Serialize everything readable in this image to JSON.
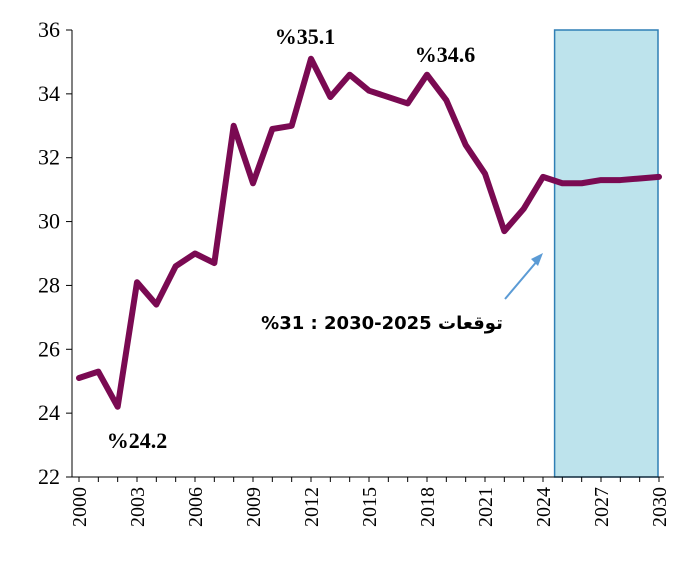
{
  "chart_data": {
    "type": "line",
    "title": "",
    "xlabel": "",
    "ylabel": "",
    "ylim": [
      22,
      36
    ],
    "xlim": [
      2000,
      2030
    ],
    "yticks": [
      22,
      24,
      26,
      28,
      30,
      32,
      34,
      36
    ],
    "xticks": [
      2000,
      2003,
      2006,
      2009,
      2012,
      2015,
      2018,
      2021,
      2024,
      2027,
      2030
    ],
    "grid": false,
    "legend": "none",
    "series": [
      {
        "color": "#7a0a52",
        "x": [
          2000,
          2001,
          2002,
          2003,
          2004,
          2005,
          2006,
          2007,
          2008,
          2009,
          2010,
          2011,
          2012,
          2013,
          2014,
          2015,
          2016,
          2017,
          2018,
          2019,
          2020,
          2021,
          2022,
          2023,
          2024,
          2025,
          2026,
          2027,
          2028,
          2029,
          2030
        ],
        "values": [
          25.1,
          25.3,
          24.2,
          28.1,
          27.4,
          28.6,
          29.0,
          28.7,
          33.0,
          31.2,
          32.9,
          33.0,
          35.1,
          33.9,
          34.6,
          34.1,
          33.9,
          33.7,
          34.6,
          33.8,
          32.4,
          31.5,
          29.7,
          30.4,
          31.4,
          31.2,
          31.2,
          31.3,
          31.3,
          31.35,
          31.4
        ]
      }
    ],
    "forecast_region": {
      "x_from": 2024.6,
      "x_to": 2030.5,
      "fill": "#bde3ec",
      "stroke": "#2f7fb5"
    },
    "annotations": [
      {
        "id": "min",
        "text": "%24.2",
        "x": 2002
      },
      {
        "id": "max",
        "text": "%35.1",
        "x": 2012
      },
      {
        "id": "peak2",
        "text": "%34.6",
        "x": 2018
      },
      {
        "id": "forecast",
        "text": "توقعات 2025-2030 : 31%"
      }
    ],
    "arrow_color": "#5b9bd5"
  }
}
